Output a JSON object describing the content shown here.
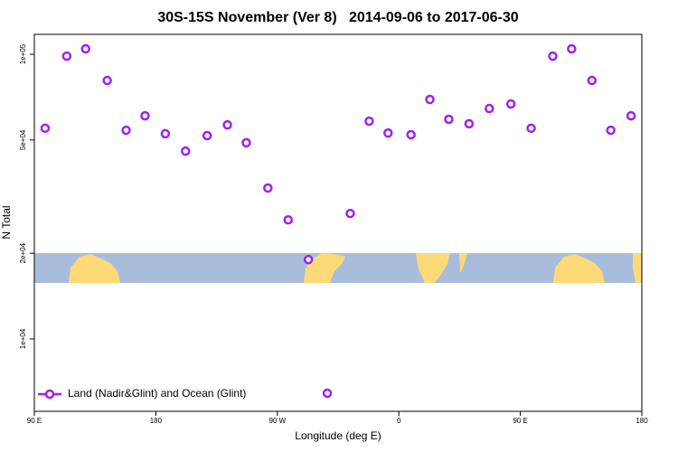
{
  "chart_data": {
    "type": "scatter",
    "title": "30S-15S November (Ver 8)   2014-09-06 to 2017-06-30",
    "x_label": "Longitude (deg E)",
    "y_label": "N Total",
    "log_y": true,
    "legend_position": "bottomleft",
    "xlim": [
      90,
      540
    ],
    "xticks": [
      {
        "value": 90,
        "label": "90 E"
      },
      {
        "value": 180,
        "label": "180"
      },
      {
        "value": 270,
        "label": "90 W"
      },
      {
        "value": 360,
        "label": "0"
      },
      {
        "value": 450,
        "label": "90 E"
      },
      {
        "value": 540,
        "label": "180"
      }
    ],
    "ylim": [
      5570,
      117500
    ],
    "yticks": [
      {
        "value": 10000,
        "label": "1e+04"
      },
      {
        "value": 20000,
        "label": "2e+04"
      },
      {
        "value": 50000,
        "label": "5e+04"
      },
      {
        "value": 100000,
        "label": "1e+05"
      }
    ],
    "series": [
      {
        "name": "Land (Nadir&Glint) and Ocean (Glint)",
        "color": "#a020f0",
        "x": [
          98,
          114,
          128,
          144,
          158,
          172,
          187,
          202,
          218,
          233,
          247,
          263,
          278,
          293,
          307,
          324,
          338,
          352,
          369,
          383,
          397,
          412,
          427,
          443,
          458,
          474,
          488,
          503,
          517,
          532
        ],
        "values": [
          55000,
          98500,
          104500,
          80900,
          54100,
          60800,
          52600,
          45700,
          51800,
          56500,
          48900,
          33900,
          26200,
          19000,
          6450,
          27600,
          58200,
          52900,
          52200,
          69400,
          59100,
          57000,
          64500,
          66900,
          55000,
          98500,
          104500,
          80900,
          54100,
          60800
        ]
      }
    ]
  }
}
